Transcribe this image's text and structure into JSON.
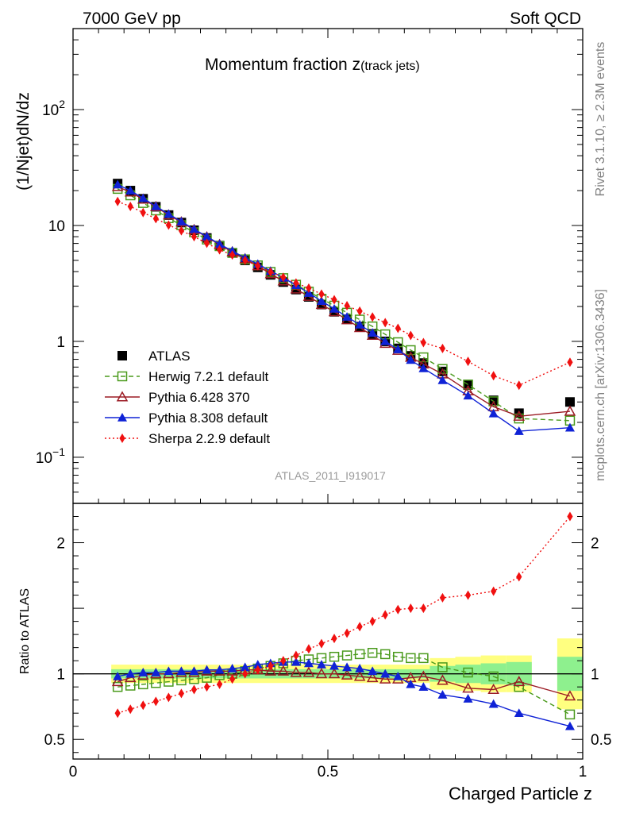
{
  "header": {
    "left": "7000 GeV pp",
    "right": "Soft QCD"
  },
  "side_labels": {
    "rivet": "Rivet 3.1.10, ≥ 2.3M events",
    "site": "mcplots.cern.ch [arXiv:1306.3436]"
  },
  "chart_data": {
    "type": "scatter",
    "title": "Momentum fraction z",
    "title_sub": "(track jets)",
    "analysis_label": "ATLAS_2011_I919017",
    "xlabel": "Charged Particle z",
    "ylabel": "(1/Njet)dN/dz",
    "ratio_ylabel": "Ratio to ATLAS",
    "xlim": [
      0,
      1.0
    ],
    "ylim": [
      0.04,
      500
    ],
    "ylog": true,
    "ratio_ylim": [
      0.35,
      2.3
    ],
    "x_ticks": [
      {
        "v": 0,
        "label": "0"
      },
      {
        "v": 0.5,
        "label": "0.5"
      },
      {
        "v": 1,
        "label": "1"
      }
    ],
    "y_ticks": [
      {
        "v": 0.1,
        "base": "10",
        "exp": "−1"
      },
      {
        "v": 1,
        "base": "1",
        "exp": ""
      },
      {
        "v": 10,
        "base": "10",
        "exp": ""
      },
      {
        "v": 100,
        "base": "10",
        "exp": "2"
      }
    ],
    "ratio_ticks": [
      {
        "v": 0.5,
        "label": "0.5"
      },
      {
        "v": 1,
        "label": "1"
      },
      {
        "v": 2,
        "label": "2"
      }
    ],
    "legend_position": "middle-left",
    "x": [
      0.0875,
      0.1125,
      0.1375,
      0.1625,
      0.1875,
      0.2125,
      0.2375,
      0.2625,
      0.2875,
      0.3125,
      0.3375,
      0.3625,
      0.3875,
      0.4125,
      0.4375,
      0.4625,
      0.4875,
      0.5125,
      0.5375,
      0.5625,
      0.5875,
      0.6125,
      0.6375,
      0.6625,
      0.6875,
      0.725,
      0.775,
      0.825,
      0.875,
      0.975
    ],
    "band_bins": [
      {
        "x0": 0.075,
        "x1": 0.7,
        "inner": 0.035,
        "outer": 0.07
      },
      {
        "x0": 0.7,
        "x1": 0.75,
        "inner": 0.06,
        "outer": 0.12
      },
      {
        "x0": 0.75,
        "x1": 0.8,
        "inner": 0.07,
        "outer": 0.13
      },
      {
        "x0": 0.8,
        "x1": 0.85,
        "inner": 0.08,
        "outer": 0.14
      },
      {
        "x0": 0.85,
        "x1": 0.9,
        "inner": 0.09,
        "outer": 0.14
      },
      {
        "x0": 0.95,
        "x1": 1.0,
        "inner": 0.13,
        "outer": 0.27
      }
    ],
    "series": [
      {
        "name": "ATLAS",
        "color": "#000000",
        "marker": "square-filled",
        "line": "none",
        "values": [
          23.0,
          20.0,
          17.0,
          14.5,
          12.3,
          10.6,
          9.1,
          7.8,
          6.7,
          5.8,
          5.0,
          4.35,
          3.75,
          3.25,
          2.8,
          2.42,
          2.08,
          1.8,
          1.55,
          1.34,
          1.16,
          1.0,
          0.87,
          0.75,
          0.65,
          0.55,
          0.42,
          0.31,
          0.24,
          0.3
        ]
      },
      {
        "name": "Herwig 7.2.1 default",
        "color": "#4a9a1c",
        "marker": "square-open",
        "line": "dashed",
        "ratio": [
          0.9,
          0.91,
          0.92,
          0.93,
          0.94,
          0.95,
          0.96,
          0.97,
          0.99,
          1.0,
          1.02,
          1.04,
          1.06,
          1.08,
          1.1,
          1.11,
          1.12,
          1.13,
          1.14,
          1.15,
          1.16,
          1.15,
          1.13,
          1.12,
          1.12,
          1.05,
          1.01,
          0.98,
          0.9,
          0.69
        ]
      },
      {
        "name": "Pythia 6.428 370",
        "color": "#9b1b24",
        "marker": "triangle-open",
        "line": "solid",
        "ratio": [
          0.94,
          0.97,
          0.99,
          1.0,
          1.0,
          1.01,
          1.01,
          1.02,
          1.02,
          1.02,
          1.03,
          1.03,
          1.02,
          1.02,
          1.01,
          1.01,
          1.0,
          1.0,
          0.99,
          0.98,
          0.97,
          0.96,
          0.96,
          0.97,
          0.98,
          0.95,
          0.89,
          0.88,
          0.94,
          0.83
        ]
      },
      {
        "name": "Pythia 8.308 default",
        "color": "#0f22d6",
        "marker": "triangle-filled",
        "line": "solid",
        "ratio": [
          0.98,
          1.0,
          1.01,
          1.01,
          1.02,
          1.02,
          1.02,
          1.03,
          1.03,
          1.04,
          1.05,
          1.07,
          1.08,
          1.09,
          1.09,
          1.08,
          1.07,
          1.06,
          1.05,
          1.04,
          1.02,
          1.0,
          0.98,
          0.92,
          0.9,
          0.84,
          0.81,
          0.77,
          0.7,
          0.6
        ]
      },
      {
        "name": "Sherpa 2.2.9 default",
        "color": "#f01010",
        "marker": "diamond-filled",
        "line": "dotted",
        "ratio": [
          0.7,
          0.73,
          0.76,
          0.79,
          0.82,
          0.85,
          0.88,
          0.9,
          0.92,
          0.96,
          1.0,
          1.03,
          1.06,
          1.1,
          1.14,
          1.19,
          1.23,
          1.27,
          1.31,
          1.36,
          1.4,
          1.45,
          1.49,
          1.5,
          1.5,
          1.58,
          1.6,
          1.63,
          1.74,
          2.2
        ]
      }
    ]
  }
}
